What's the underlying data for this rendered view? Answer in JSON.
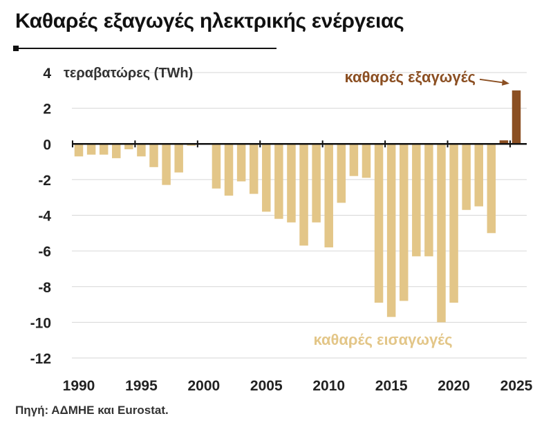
{
  "title": "Καθαρές εξαγωγές ηλεκτρικής ενέργειας",
  "source": "Πηγή: ΑΔΜΗΕ και Eurostat.",
  "colors": {
    "imports": "#e3c688",
    "exports": "#8b4f22",
    "grid": "#d6d6d6",
    "axis": "#111111"
  },
  "chart_data": {
    "type": "bar",
    "ylabel": "τεραβατώρες (TWh)",
    "ylim": [
      -12,
      4
    ],
    "yticks": [
      4,
      2,
      0,
      -2,
      -4,
      -6,
      -8,
      -10,
      -12
    ],
    "xticks": [
      1990,
      1995,
      2000,
      2005,
      2010,
      2015,
      2020,
      2025
    ],
    "grid": true,
    "annotations": {
      "exports": "καθαρές εξαγωγές",
      "imports": "καθαρές εισαγωγές"
    },
    "series": [
      {
        "name": "καθαρές εισαγωγές",
        "x": [
          1990,
          1991,
          1992,
          1993,
          1994,
          1995,
          1996,
          1997,
          1998,
          1999,
          2000,
          2001,
          2002,
          2003,
          2004,
          2005,
          2006,
          2007,
          2008,
          2009,
          2010,
          2011,
          2012,
          2013,
          2014,
          2015,
          2016,
          2017,
          2018,
          2019,
          2020,
          2021,
          2022,
          2023
        ],
        "values": [
          -0.7,
          -0.6,
          -0.6,
          -0.8,
          -0.3,
          -0.7,
          -1.3,
          -2.3,
          -1.6,
          -0.1,
          0,
          -2.5,
          -2.9,
          -2.1,
          -2.8,
          -3.8,
          -4.2,
          -4.4,
          -5.7,
          -4.4,
          -5.8,
          -3.3,
          -1.8,
          -1.9,
          -8.9,
          -9.7,
          -8.8,
          -6.3,
          -6.3,
          -10.0,
          -8.9,
          -3.7,
          -3.5,
          -5.0
        ]
      },
      {
        "name": "καθαρές εξαγωγές",
        "x": [
          2024,
          2025
        ],
        "values": [
          0.2,
          3.0
        ]
      }
    ]
  }
}
